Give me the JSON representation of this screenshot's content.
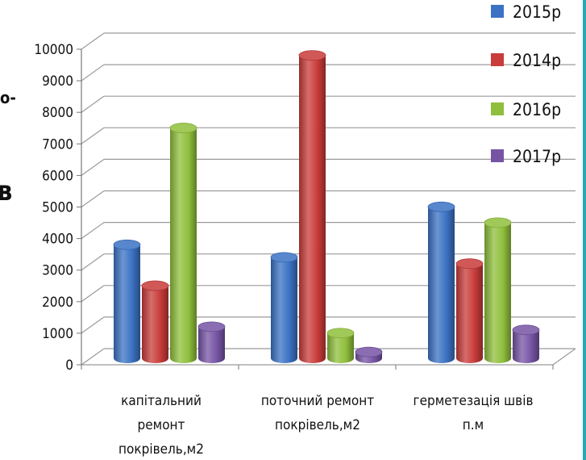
{
  "page_fragments": {
    "top": "о-",
    "mid": "в"
  },
  "colors": {
    "2015p": "#3b72c4",
    "2014p": "#c83c3a",
    "2016p": "#8fbf3c",
    "2017p": "#7654a4",
    "accent": "#2aa8b8"
  },
  "chart_data": {
    "type": "bar",
    "title": "",
    "xlabel": "",
    "ylabel": "",
    "ylim": [
      0,
      10000
    ],
    "yticks": [
      0,
      1000,
      2000,
      3000,
      4000,
      5000,
      6000,
      7000,
      8000,
      9000,
      10000
    ],
    "grid": true,
    "legend_position": "top-right",
    "categories": [
      [
        "капітальний",
        "ремонт",
        "покрівель,м2"
      ],
      [
        "поточний ремонт",
        "покрівель,м2"
      ],
      [
        "герметезація швів",
        "п.м"
      ]
    ],
    "series": [
      {
        "name": "2015р",
        "color": "#3b72c4",
        "values": [
          3600,
          3200,
          4800
        ]
      },
      {
        "name": "2014р",
        "color": "#c83c3a",
        "values": [
          2300,
          9600,
          3000
        ]
      },
      {
        "name": "2016р",
        "color": "#8fbf3c",
        "values": [
          7300,
          800,
          4300
        ]
      },
      {
        "name": "2017р",
        "color": "#7654a4",
        "values": [
          1000,
          200,
          900
        ]
      }
    ]
  }
}
